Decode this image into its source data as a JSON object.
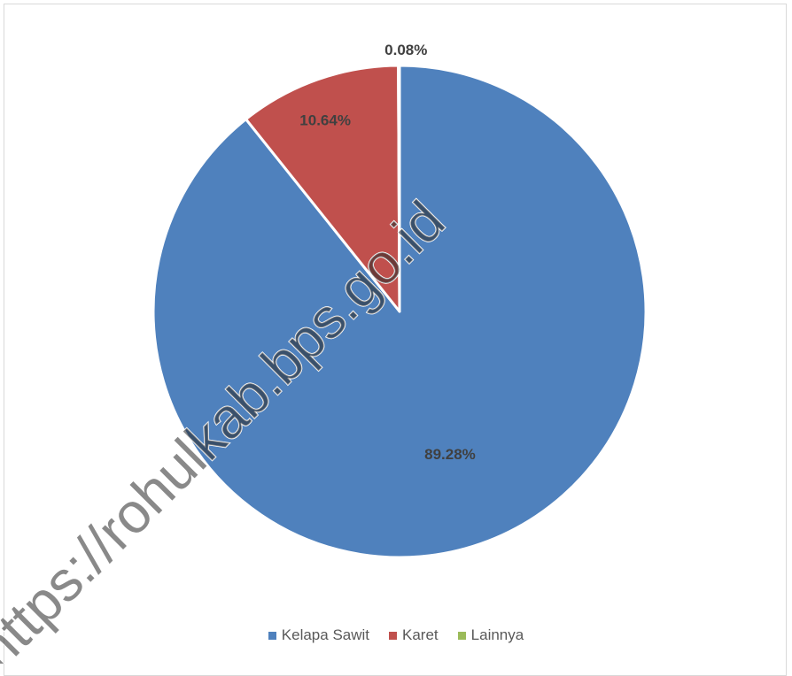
{
  "chart_data": {
    "type": "pie",
    "title": "",
    "categories": [
      "Kelapa Sawit",
      "Karet",
      "Lainnya"
    ],
    "values": [
      89.28,
      10.64,
      0.08
    ],
    "labels": [
      "89.28%",
      "10.64%",
      "0.08%"
    ],
    "colors": [
      "#4F81BD",
      "#C0504D",
      "#9BBB59"
    ],
    "legend_position": "bottom",
    "start_angle": "12 o'clock",
    "direction": "clockwise"
  },
  "watermark": {
    "text": "https://rohulkab.bps.go.id"
  }
}
